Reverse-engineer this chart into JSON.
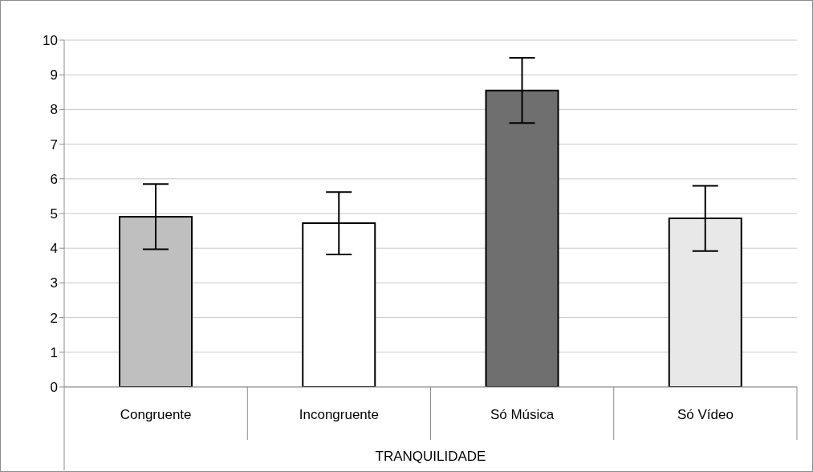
{
  "chart_data": {
    "type": "bar",
    "xlabel": "TRANQUILIDADE",
    "categories": [
      "Congruente",
      "Incongruente",
      "Só Música",
      "Só Vídeo"
    ],
    "values": [
      4.91,
      4.72,
      8.55,
      4.86
    ],
    "errors": [
      0.94,
      0.9,
      0.94,
      0.94
    ],
    "colors": [
      "#bfbfbf",
      "#ffffff",
      "#6f6f6f",
      "#e8e8e8"
    ],
    "ylim": [
      0,
      10
    ],
    "yticks": [
      0,
      1,
      2,
      3,
      4,
      5,
      6,
      7,
      8,
      9,
      10
    ],
    "grid": "y"
  }
}
